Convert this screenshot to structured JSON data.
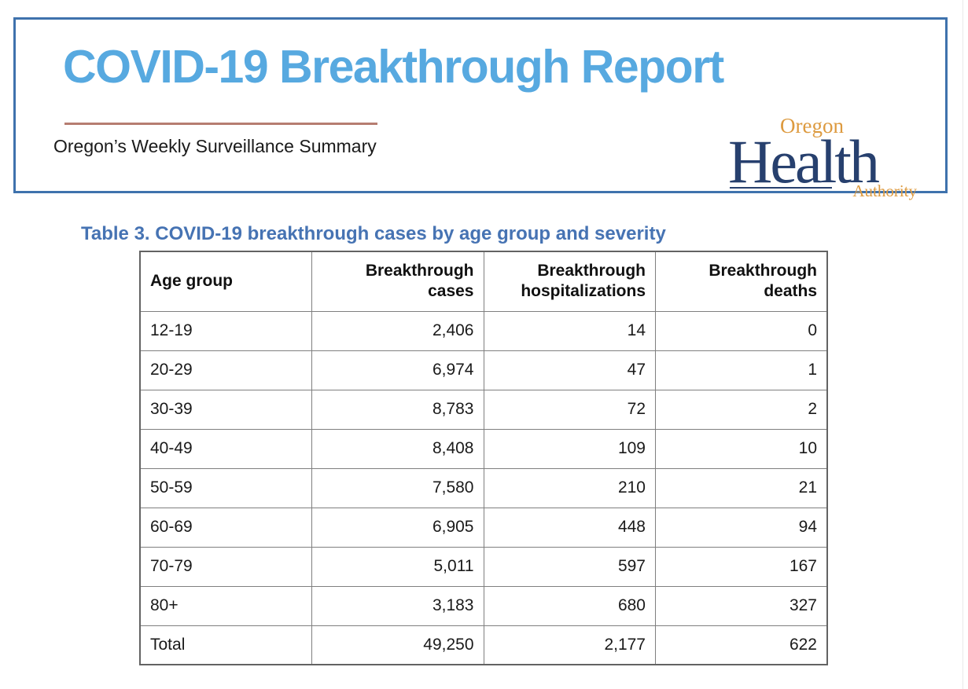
{
  "header": {
    "title": "COVID-19 Breakthrough Report",
    "subtitle": "Oregon’s Weekly Surveillance Summary",
    "logo": {
      "oregon": "Oregon",
      "health": "Health",
      "authority": "Authority"
    }
  },
  "table_title": "Table 3. COVID-19 breakthrough cases by age group and severity",
  "chart_data": {
    "type": "table",
    "title": "Table 3. COVID-19 breakthrough cases by age group and severity",
    "columns": [
      "Age group",
      "Breakthrough cases",
      "Breakthrough hospitalizations",
      "Breakthrough deaths"
    ],
    "rows": [
      [
        "12-19",
        "2,406",
        "14",
        "0"
      ],
      [
        "20-29",
        "6,974",
        "47",
        "1"
      ],
      [
        "30-39",
        "8,783",
        "72",
        "2"
      ],
      [
        "40-49",
        "8,408",
        "109",
        "10"
      ],
      [
        "50-59",
        "7,580",
        "210",
        "21"
      ],
      [
        "60-69",
        "6,905",
        "448",
        "94"
      ],
      [
        "70-79",
        "5,011",
        "597",
        "167"
      ],
      [
        "80+",
        "3,183",
        "680",
        "327"
      ],
      [
        "Total",
        "49,250",
        "2,177",
        "622"
      ]
    ]
  },
  "colors": {
    "report_title": "#57a9e0",
    "header_border": "#3f72ad",
    "divider": "#b67d71",
    "table_title": "#4673b3",
    "logo_navy": "#27406e",
    "logo_orange": "#dd9a3f"
  }
}
